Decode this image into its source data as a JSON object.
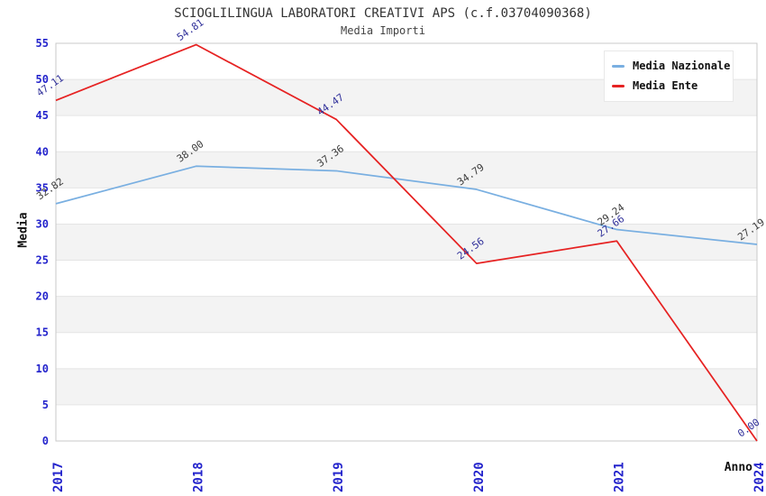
{
  "chart_data": {
    "type": "line",
    "title": "SCIOGLILINGUA LABORATORI CREATIVI APS (c.f.03704090368)",
    "subtitle": "Media Importi",
    "xlabel": "Anno",
    "ylabel": "Media",
    "categories": [
      "2017",
      "2018",
      "2019",
      "2020",
      "2021",
      "2024"
    ],
    "series": [
      {
        "name": "Media Nazionale",
        "values": [
          32.82,
          38.0,
          37.36,
          34.79,
          29.24,
          27.19
        ],
        "labels": [
          "32.82",
          "38.00",
          "37.36",
          "34.79",
          "29.24",
          "27.19"
        ],
        "color": "#79afe1",
        "label_color": "#3c3c3c"
      },
      {
        "name": "Media Ente",
        "values": [
          47.11,
          54.81,
          44.47,
          24.56,
          27.66,
          0.0
        ],
        "labels": [
          "47.11",
          "54.81",
          "44.47",
          "24.56",
          "27.66",
          "0.00"
        ],
        "color": "#e62222",
        "label_color": "#30309a"
      }
    ],
    "ylim": [
      0,
      55
    ],
    "ytick_step": 5,
    "grid": "horizontal-bands",
    "legend_position": "top-right"
  },
  "colors": {
    "tick_label": "#2424cc",
    "band_fill": "#f3f3f3",
    "gridline": "#e4e4e4",
    "plot_border": "#c9c9c9",
    "title_text": "#333333",
    "axis_title_text": "#111111",
    "legend_text": "#111111",
    "legend_bg": "#ffffff"
  }
}
